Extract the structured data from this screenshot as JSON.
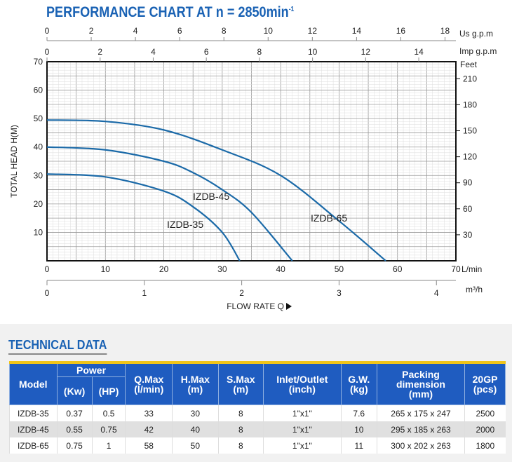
{
  "chart_data": {
    "type": "line",
    "title": "PERFORMANCE CHART AT n = 2850min",
    "title_superscript": "-1",
    "xlabel": "FLOW RATE Q",
    "ylabel": "TOTAL HEAD H(M)",
    "x_unit": "L/min",
    "xlim": [
      0,
      70
    ],
    "ylim": [
      0,
      70
    ],
    "grid": true,
    "x_ticks": [
      0,
      10,
      20,
      30,
      40,
      50,
      60,
      70
    ],
    "y_ticks": [
      10,
      20,
      30,
      40,
      50,
      60,
      70
    ],
    "secondary_axes": {
      "us_gpm": {
        "label": "Us g.p.m",
        "ticks": [
          0,
          2,
          4,
          6,
          8,
          10,
          12,
          14,
          16,
          18
        ]
      },
      "imp_gpm": {
        "label": "Imp g.p.m",
        "ticks": [
          0,
          2,
          4,
          6,
          8,
          10,
          12,
          14
        ]
      },
      "feet": {
        "label": "Feet",
        "ticks": [
          30,
          60,
          90,
          120,
          150,
          180,
          210
        ]
      },
      "m3h": {
        "label": "m³/h",
        "ticks": [
          0,
          1,
          2,
          3,
          4
        ]
      }
    },
    "series": [
      {
        "name": "IZDB-35",
        "x": [
          0,
          10,
          20,
          25,
          30,
          33
        ],
        "y": [
          30.5,
          29.5,
          24.5,
          19,
          10,
          0
        ]
      },
      {
        "name": "IZDB-45",
        "x": [
          0,
          10,
          20,
          25,
          30,
          35,
          42
        ],
        "y": [
          40,
          39,
          35,
          31,
          25,
          17,
          0
        ]
      },
      {
        "name": "IZDB-65",
        "x": [
          0,
          10,
          20,
          30,
          40,
          50,
          58
        ],
        "y": [
          49.5,
          49,
          46,
          39,
          30,
          14,
          0
        ]
      }
    ],
    "line_color": "#1b6aa8"
  },
  "technical": {
    "title": "TECHNICAL DATA",
    "headers": {
      "model": "Model",
      "power": "Power",
      "kw": "(Kw)",
      "hp": "(HP)",
      "qmax": "Q.Max",
      "qmax_u": "(l/min)",
      "hmax": "H.Max",
      "hmax_u": "(m)",
      "smax": "S.Max",
      "smax_u": "(m)",
      "io": "Inlet/Outlet",
      "io_u": "(inch)",
      "gw": "G.W.",
      "gw_u": "(kg)",
      "pack": "Packing",
      "pack2": "dimension",
      "pack_u": "(mm)",
      "gp": "20GP",
      "gp_u": "(pcs)"
    },
    "rows": [
      [
        "IZDB-35",
        "0.37",
        "0.5",
        "33",
        "30",
        "8",
        "1\"x1\"",
        "7.6",
        "265 x 175 x 247",
        "2500"
      ],
      [
        "IZDB-45",
        "0.55",
        "0.75",
        "42",
        "40",
        "8",
        "1\"x1\"",
        "10",
        "295 x 185 x 263",
        "2000"
      ],
      [
        "IZDB-65",
        "0.75",
        "1",
        "58",
        "50",
        "8",
        "1\"x1\"",
        "11",
        "300 x 202 x 263",
        "1800"
      ]
    ]
  }
}
